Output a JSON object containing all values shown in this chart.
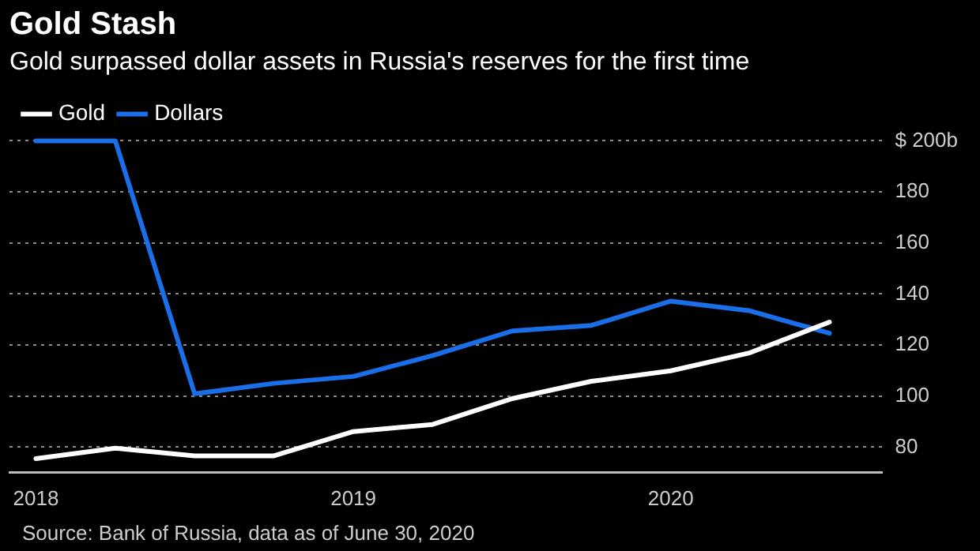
{
  "chart_data": {
    "type": "line",
    "title": "Gold Stash",
    "subtitle": "Gold surpassed dollar assets in Russia's reserves for the first time",
    "x": [
      "2018-01",
      "2018-04",
      "2018-07",
      "2018-10",
      "2019-01",
      "2019-04",
      "2019-07",
      "2019-10",
      "2020-01",
      "2020-04",
      "2020-07"
    ],
    "series": [
      {
        "name": "Gold",
        "color": "#ffffff",
        "values": [
          75.5,
          79.6,
          76.6,
          76.6,
          86.1,
          88.9,
          99.0,
          105.8,
          109.9,
          117.0,
          129.0
        ]
      },
      {
        "name": "Dollars",
        "color": "#1a6fe8",
        "values": [
          200,
          200,
          100.9,
          105.0,
          107.7,
          115.9,
          125.5,
          127.7,
          137.2,
          133.4,
          124.6
        ]
      }
    ],
    "xlim": [
      "2017-12",
      "2020-09"
    ],
    "xticks": [
      {
        "value": "2018",
        "label": "2018"
      },
      {
        "value": "2019",
        "label": "2019"
      },
      {
        "value": "2020",
        "label": "2020"
      }
    ],
    "ylim": [
      70,
      200
    ],
    "yticks": [
      80,
      100,
      120,
      140,
      160,
      180,
      {
        "value": 200,
        "label": "$ 200b"
      }
    ],
    "grid": "y",
    "legend": "top left",
    "marker": "none",
    "line_style": "solid",
    "annotations": [
      "Source: Bank of Russia, data as of June 30, 2020"
    ]
  }
}
